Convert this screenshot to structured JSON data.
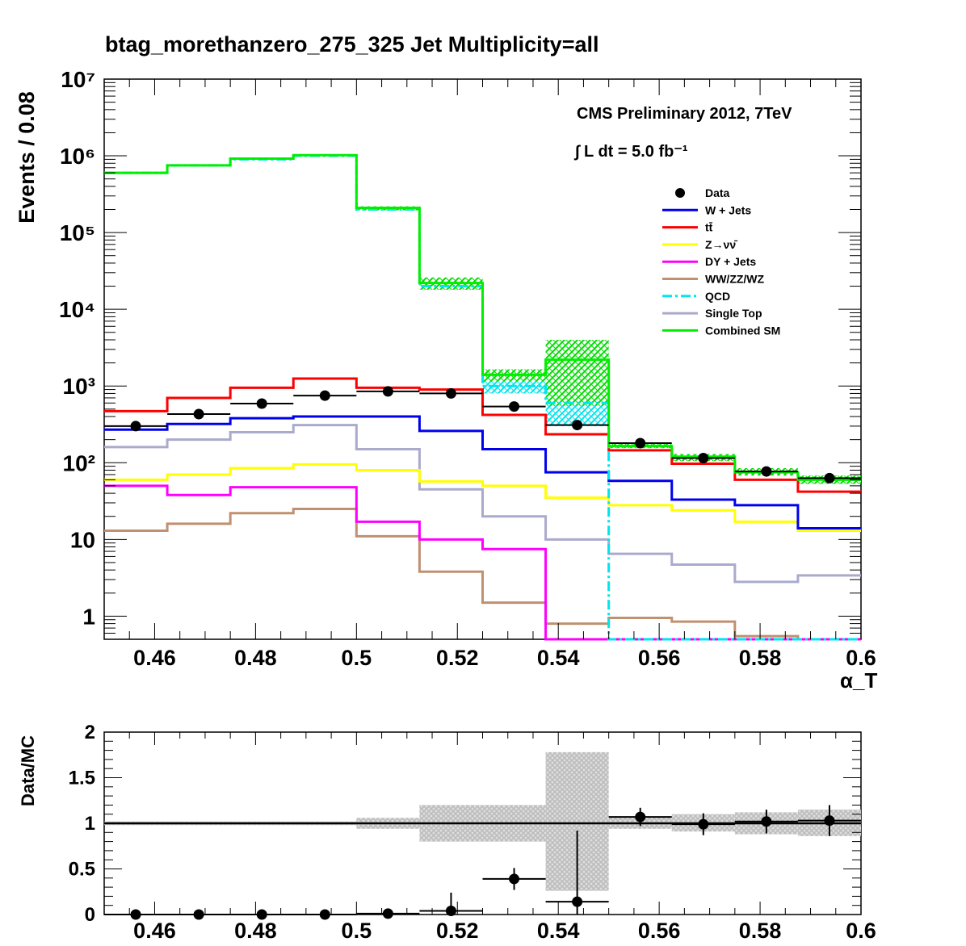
{
  "chart_data": [
    {
      "type": "line",
      "title": "btag_morethanzero_275_325    Jet Multiplicity=all",
      "xlabel": "α_T",
      "ylabel": "Events / 0.08",
      "y_scale": "log",
      "xlim": [
        0.45,
        0.6
      ],
      "ylim": [
        0.5,
        10000000
      ],
      "grid": false,
      "legend_position": "top-right",
      "annotations": {
        "line1": "CMS Preliminary 2012, 7TeV",
        "line2": "∫ L dt = 5.0 fb⁻¹"
      },
      "x_ticks": [
        "0.46",
        "0.48",
        "0.5",
        "0.52",
        "0.54",
        "0.56",
        "0.58",
        "0.6"
      ],
      "y_ticks": [
        "1",
        "10",
        "10²",
        "10³",
        "10⁴",
        "10⁵",
        "10⁶",
        "10⁷"
      ],
      "bin_edges": [
        0.45,
        0.4625,
        0.475,
        0.4875,
        0.5,
        0.5125,
        0.525,
        0.5375,
        0.55,
        0.5625,
        0.575,
        0.5875,
        0.6
      ],
      "series": [
        {
          "name": "W + Jets",
          "color": "#0000ee",
          "values": [
            270,
            320,
            380,
            400,
            400,
            260,
            150,
            75,
            58,
            33,
            28,
            14
          ]
        },
        {
          "name": "tt̄",
          "color": "#ff0000",
          "values": [
            470,
            700,
            950,
            1250,
            950,
            900,
            420,
            235,
            145,
            97,
            60,
            42
          ]
        },
        {
          "name": "Z→νν̄",
          "color": "#ffff00",
          "values": [
            60,
            70,
            85,
            95,
            80,
            57,
            50,
            35,
            28,
            24,
            17,
            13
          ]
        },
        {
          "name": "DY + Jets",
          "color": "#ff00ff",
          "values": [
            50,
            38,
            48,
            48,
            17,
            10,
            7.5,
            0.5,
            0.5,
            0.5,
            0.5,
            0.5
          ]
        },
        {
          "name": "WW/ZZ/WZ",
          "color": "#c09070",
          "values": [
            13,
            16,
            22,
            25,
            11,
            3.8,
            1.5,
            0.8,
            0.95,
            0.85,
            0.55,
            0.5
          ]
        },
        {
          "name": "QCD",
          "color": "#00e5ee",
          "values": [
            600000,
            750000,
            900000,
            1000000,
            200000,
            20000,
            1000,
            600,
            0.5,
            0.5,
            0.5,
            0.5
          ]
        },
        {
          "name": "Single Top",
          "color": "#aaaacc",
          "values": [
            160,
            200,
            250,
            310,
            150,
            45,
            20,
            10,
            6.5,
            4.7,
            2.8,
            3.4
          ]
        },
        {
          "name": "Combined SM",
          "color": "#00ee00",
          "values": [
            600000,
            750000,
            920000,
            1020000,
            210000,
            22000,
            1400,
            2200,
            165,
            120,
            75,
            60
          ]
        }
      ],
      "data_points": {
        "name": "Data",
        "x": [
          0.45625,
          0.46875,
          0.48125,
          0.49375,
          0.50625,
          0.51875,
          0.53125,
          0.54375,
          0.55625,
          0.56875,
          0.58125,
          0.59375
        ],
        "y": [
          300,
          430,
          590,
          750,
          850,
          800,
          540,
          310,
          180,
          115,
          77,
          63
        ]
      }
    },
    {
      "type": "scatter",
      "ylabel": "Data/MC",
      "xlim": [
        0.45,
        0.6
      ],
      "ylim": [
        0,
        2
      ],
      "x_ticks": [
        "0.46",
        "0.48",
        "0.5",
        "0.52",
        "0.54",
        "0.56",
        "0.58",
        "0.6"
      ],
      "y_ticks": [
        "0",
        "0.5",
        "1",
        "1.5",
        "2"
      ],
      "reference_line": 1,
      "mc_uncertainty_band": {
        "low": [
          0.98,
          0.98,
          0.98,
          0.98,
          0.94,
          0.8,
          0.8,
          0.26,
          0.94,
          0.91,
          0.88,
          0.86
        ],
        "high": [
          1.02,
          1.02,
          1.02,
          1.02,
          1.06,
          1.2,
          1.2,
          1.78,
          1.07,
          1.1,
          1.12,
          1.15
        ]
      },
      "data_points": {
        "x": [
          0.45625,
          0.46875,
          0.48125,
          0.49375,
          0.50625,
          0.51875,
          0.53125,
          0.54375,
          0.55625,
          0.56875,
          0.58125,
          0.59375
        ],
        "y": [
          0.0,
          0.0,
          0.0,
          0.0,
          0.01,
          0.04,
          0.39,
          0.14,
          1.07,
          0.99,
          1.02,
          1.03
        ],
        "err": [
          0.0,
          0.0,
          0.0,
          0.0,
          0.01,
          0.2,
          0.12,
          0.78,
          0.1,
          0.12,
          0.13,
          0.17
        ]
      }
    }
  ]
}
